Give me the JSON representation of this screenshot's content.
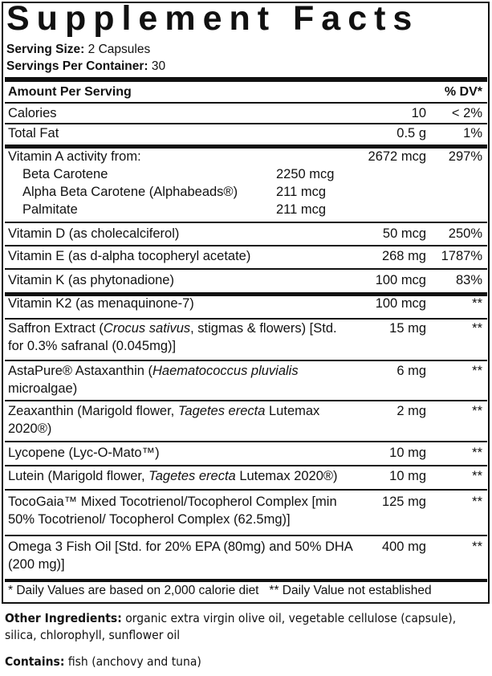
{
  "title": "Supplement Facts",
  "serving_size_label": "Serving Size:",
  "serving_size": " 2 Capsules",
  "servings_label": "Servings Per Container:",
  "servings": " 30",
  "header": {
    "amount": "Amount Per Serving",
    "dv": "% DV*"
  },
  "rows": [
    {
      "name": [
        {
          "t": "Calories"
        }
      ],
      "amount": "10",
      "dv": "< 2%"
    },
    {
      "name": [
        {
          "t": "Total Fat"
        }
      ],
      "amount": "0.5 g",
      "dv": "1%"
    },
    {
      "name": [
        {
          "t": "Vitamin A activity from:"
        }
      ],
      "amount": "2672 mcg",
      "dv": "297%",
      "sub": [
        {
          "name": "Beta Carotene",
          "amount": "2250 mcg"
        },
        {
          "name": "Alpha Beta Carotene (Alphabeads®)",
          "amount": "211 mcg"
        },
        {
          "name": "Palmitate",
          "amount": "211 mcg"
        }
      ]
    },
    {
      "name": [
        {
          "t": "Vitamin D (as cholecalciferol)"
        }
      ],
      "amount": "50 mcg",
      "dv": "250%"
    },
    {
      "name": [
        {
          "t": "Vitamin E (as d-alpha tocopheryl acetate)"
        }
      ],
      "amount": "268 mg",
      "dv": "1787%"
    },
    {
      "name": [
        {
          "t": "Vitamin K (as phytonadione)"
        }
      ],
      "amount": "100 mcg",
      "dv": "83%"
    },
    {
      "name": [
        {
          "t": "Vitamin K2 (as menaquinone-7)"
        }
      ],
      "amount": "100 mcg",
      "dv": "**"
    },
    {
      "name": [
        {
          "t": "Saffron Extract ("
        },
        {
          "t": "Crocus sativus",
          "i": true
        },
        {
          "t": ", stigmas & flowers) [Std. for 0.3% safranal (0.045mg)]"
        }
      ],
      "amount": "15 mg",
      "dv": "**"
    },
    {
      "name": [
        {
          "t": "AstaPure® Astaxanthin ("
        },
        {
          "t": "Haematococcus pluvialis",
          "i": true
        },
        {
          "t": " microalgae)"
        }
      ],
      "amount": "6 mg",
      "dv": "**"
    },
    {
      "name": [
        {
          "t": "Zeaxanthin (Marigold flower, "
        },
        {
          "t": "Tagetes erecta",
          "i": true
        },
        {
          "t": " Lutemax 2020®)"
        }
      ],
      "amount": "2 mg",
      "dv": "**"
    },
    {
      "name": [
        {
          "t": "Lycopene (Lyc-O-Mato™)"
        }
      ],
      "amount": "10 mg",
      "dv": "**"
    },
    {
      "name": [
        {
          "t": "Lutein (Marigold flower, "
        },
        {
          "t": "Tagetes erecta",
          "i": true
        },
        {
          "t": " Lutemax 2020®)"
        }
      ],
      "amount": "10 mg",
      "dv": "**"
    },
    {
      "name": [
        {
          "t": "TocoGaia™ Mixed Tocotrienol/Tocopherol Complex [min 50% Tocotrienol/ Tocopherol Complex (62.5mg)]"
        }
      ],
      "amount": "125 mg",
      "dv": "**"
    },
    {
      "name": [
        {
          "t": "Omega 3 Fish Oil [Std. for 20% EPA (80mg) and 50% DHA (200 mg)]"
        }
      ],
      "amount": "400 mg",
      "dv": "**"
    }
  ],
  "footnote": "* Daily Values are based on 2,000 calorie diet   ** Daily Value not established",
  "other_label": "Other Ingredients:",
  "other": " organic extra virgin olive oil, vegetable cellulose (capsule), silica, chlorophyll, sunflower oil",
  "contains_label": "Contains:",
  "contains": " fish (anchovy and tuna)"
}
